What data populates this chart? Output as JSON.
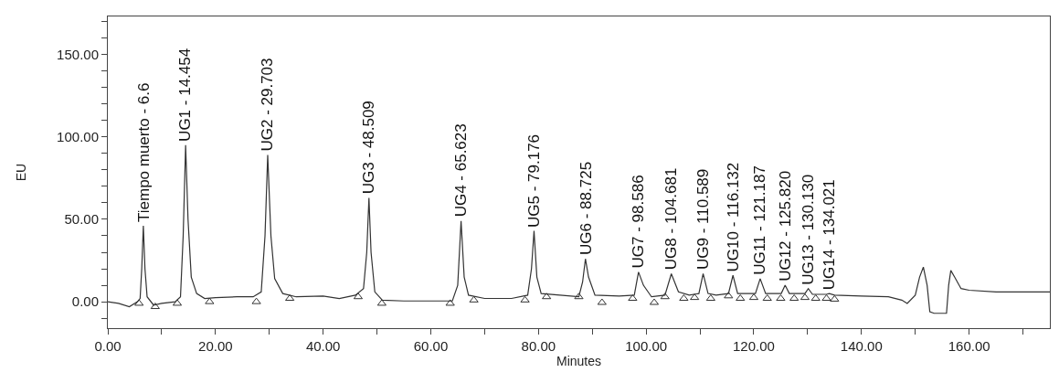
{
  "chart_data": {
    "type": "line",
    "xlabel": "Minutes",
    "ylabel": "EU",
    "xlim": [
      0,
      175
    ],
    "ylim": [
      -16,
      173
    ],
    "xticks": [
      {
        "value": 0,
        "label": "0.00"
      },
      {
        "value": 10,
        "label": null
      },
      {
        "value": 20,
        "label": "20.00"
      },
      {
        "value": 30,
        "label": null
      },
      {
        "value": 40,
        "label": "40.00"
      },
      {
        "value": 50,
        "label": null
      },
      {
        "value": 60,
        "label": "60.00"
      },
      {
        "value": 70,
        "label": null
      },
      {
        "value": 80,
        "label": "80.00"
      },
      {
        "value": 90,
        "label": null
      },
      {
        "value": 100,
        "label": "100.00"
      },
      {
        "value": 110,
        "label": null
      },
      {
        "value": 120,
        "label": "120.00"
      },
      {
        "value": 130,
        "label": null
      },
      {
        "value": 140,
        "label": "140.00"
      },
      {
        "value": 150,
        "label": null
      },
      {
        "value": 160,
        "label": "160.00"
      },
      {
        "value": 170,
        "label": null
      }
    ],
    "yticks": [
      {
        "value": -10,
        "label": null
      },
      {
        "value": 0,
        "label": "0.00"
      },
      {
        "value": 10,
        "label": null
      },
      {
        "value": 20,
        "label": null
      },
      {
        "value": 30,
        "label": null
      },
      {
        "value": 40,
        "label": null
      },
      {
        "value": 50,
        "label": "50.00"
      },
      {
        "value": 60,
        "label": null
      },
      {
        "value": 70,
        "label": null
      },
      {
        "value": 80,
        "label": null
      },
      {
        "value": 90,
        "label": null
      },
      {
        "value": 100,
        "label": "100.00"
      },
      {
        "value": 110,
        "label": null
      },
      {
        "value": 120,
        "label": null
      },
      {
        "value": 130,
        "label": null
      },
      {
        "value": 140,
        "label": null
      },
      {
        "value": 150,
        "label": "150.00"
      },
      {
        "value": 160,
        "label": null
      },
      {
        "value": 170,
        "label": null
      }
    ],
    "grid": false,
    "series": [
      {
        "color": "#333333",
        "marker": "none",
        "line_style": "solid",
        "x": [
          0,
          2,
          4,
          5.5,
          6.0,
          6.3,
          6.6,
          6.9,
          7.3,
          8.5,
          10,
          12.5,
          13.5,
          14.0,
          14.454,
          14.9,
          15.5,
          16.5,
          18,
          20,
          24,
          27,
          28.5,
          29.2,
          29.703,
          30.3,
          31,
          32.5,
          35,
          40,
          43,
          46,
          47.5,
          48.1,
          48.509,
          48.9,
          49.6,
          51,
          55,
          60,
          64,
          65.0,
          65.623,
          66.2,
          67,
          70,
          75,
          78,
          78.7,
          79.176,
          79.7,
          80.5,
          84,
          87.5,
          88.2,
          88.725,
          89.3,
          90.5,
          95,
          97.8,
          98.586,
          99.5,
          101,
          103.5,
          104.681,
          106,
          108,
          109.8,
          110.589,
          111.5,
          113,
          115.3,
          116.132,
          117,
          120.3,
          121.187,
          122.2,
          125.1,
          125.82,
          126.6,
          129.5,
          130.13,
          130.9,
          133.5,
          134.021,
          135,
          140,
          145,
          147.5,
          148.5,
          150,
          150.8,
          151.5,
          152.2,
          152.7,
          153.5,
          155.8,
          156.2,
          156.6,
          157.3,
          158.5,
          160,
          165,
          170,
          175
        ],
        "values": [
          0,
          -1,
          -3,
          0,
          2,
          20,
          46,
          20,
          3,
          -2,
          -1,
          0,
          3,
          40,
          95,
          50,
          15,
          5,
          2,
          2.5,
          3,
          3,
          6,
          40,
          89,
          40,
          14,
          5,
          3,
          3.5,
          2,
          4,
          8,
          30,
          63,
          30,
          6,
          1,
          0.5,
          0.5,
          0.5,
          10,
          49,
          15,
          4,
          2,
          2,
          4,
          20,
          43,
          15,
          5,
          4,
          3,
          12,
          26,
          15,
          4,
          3.5,
          4,
          18,
          10,
          3,
          4,
          17,
          6,
          4,
          5,
          17,
          5,
          4,
          5,
          16,
          5,
          5,
          14,
          5,
          5,
          10,
          5,
          5,
          8,
          4.5,
          4.5,
          5,
          4,
          3.5,
          3,
          1,
          -1,
          4,
          15,
          21,
          10,
          -6,
          -7,
          -7,
          10,
          19,
          15,
          8,
          7,
          6,
          6,
          6
        ]
      },
      {
        "type": "scatter",
        "color": "#333333",
        "marker": "triangle",
        "x": [
          5.8,
          8.8,
          12.9,
          18.9,
          27.6,
          33.8,
          46.5,
          50.9,
          63.6,
          68.0,
          77.5,
          81.5,
          87.5,
          91.8,
          97.5,
          101.5,
          103.5,
          107,
          109,
          112,
          115.3,
          117.5,
          120,
          122.5,
          125,
          127.5,
          129.5,
          131.5,
          133.5,
          135
        ],
        "values": [
          -1,
          -3,
          -1,
          0,
          0,
          2,
          3,
          -1,
          -1,
          1,
          1,
          3,
          3,
          -0.5,
          2,
          -0.5,
          3,
          2,
          2.5,
          2,
          3.5,
          2,
          2.5,
          2,
          2,
          2,
          2.5,
          2,
          2,
          1.5
        ]
      }
    ],
    "annotations": [
      {
        "text": "Tiempo muerto - 6.6",
        "x": 6.6,
        "y": 46
      },
      {
        "text": "UG1 - 14.454",
        "x": 14.454,
        "y": 95
      },
      {
        "text": "UG2 - 29.703",
        "x": 29.703,
        "y": 89
      },
      {
        "text": "UG3 - 48.509",
        "x": 48.509,
        "y": 63
      },
      {
        "text": "UG4 - 65.623",
        "x": 65.623,
        "y": 49
      },
      {
        "text": "UG5 - 79.176",
        "x": 79.176,
        "y": 43
      },
      {
        "text": "UG6 - 88.725",
        "x": 88.725,
        "y": 26
      },
      {
        "text": "UG7 - 98.586",
        "x": 98.586,
        "y": 18
      },
      {
        "text": "UG8 - 104.681",
        "x": 104.681,
        "y": 17
      },
      {
        "text": "UG9 - 110.589",
        "x": 110.589,
        "y": 17
      },
      {
        "text": "UG10 - 116.132",
        "x": 116.132,
        "y": 16
      },
      {
        "text": "UG11 - 121.187",
        "x": 121.187,
        "y": 14
      },
      {
        "text": "UG12 - 125.820",
        "x": 125.82,
        "y": 10
      },
      {
        "text": "UG13 - 130.130",
        "x": 130.13,
        "y": 8
      },
      {
        "text": "UG14 - 134.021",
        "x": 134.021,
        "y": 5
      }
    ]
  }
}
